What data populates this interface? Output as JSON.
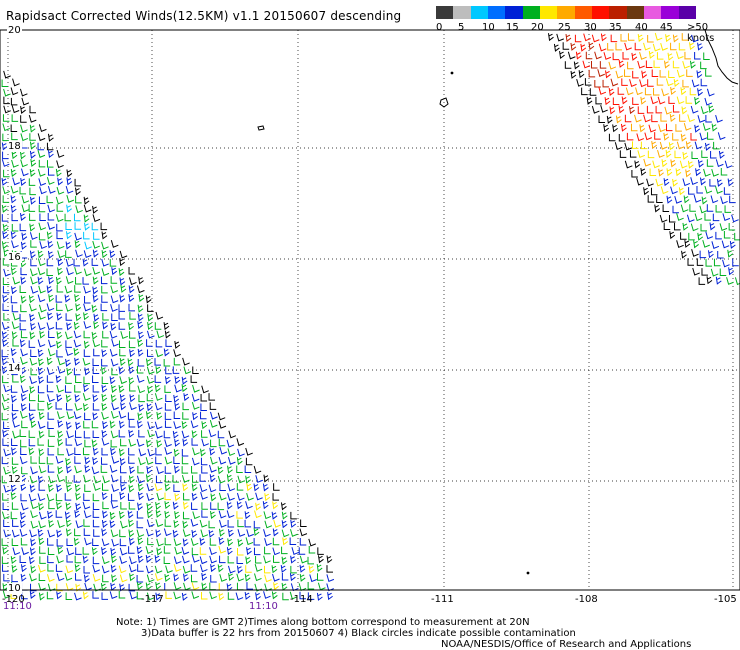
{
  "title": "Rapidsact Corrected Winds(12.5KM) v1.1 20150607 descending",
  "legend": {
    "colors": [
      "#3a3a3a",
      "#bdbdbd",
      "#00c8ff",
      "#006eff",
      "#0021d6",
      "#00b020",
      "#ffe800",
      "#ffaa00",
      "#ff5a00",
      "#ff1000",
      "#bb1f00",
      "#6b3810",
      "#e85ae0",
      "#9a00d8",
      "#5a00a8"
    ],
    "labels": [
      "0",
      "5",
      "10",
      "15",
      "20",
      "25",
      "30",
      "35",
      "40",
      "45",
      ">50 knots"
    ]
  },
  "map": {
    "lat_labels": [
      "20",
      "18",
      "16",
      "14",
      "12",
      "10"
    ],
    "lon_labels": [
      "-120",
      "-117",
      "-114",
      "-111",
      "-108",
      "-105"
    ],
    "lon_label_positions_note": "",
    "time_labels": [
      "11:10",
      "11:10"
    ]
  },
  "notes": {
    "line1": "Note: 1) Times are GMT 2)Times along bottom correspond to measurement at 20N",
    "line2": "3)Data buffer is 22 hrs from 20150607 4) Black circles indicate possible contamination",
    "credit": "NOAA/NESDIS/Office of Research and Applications"
  },
  "wind_colors": {
    "calm": "#000000",
    "light": "#0021d6",
    "mid": "#00b020",
    "strong": "#ffe800",
    "stronger": "#ffaa00",
    "gale": "#ff1000",
    "storm": "#bb1f00",
    "cyan": "#00c8ff"
  }
}
